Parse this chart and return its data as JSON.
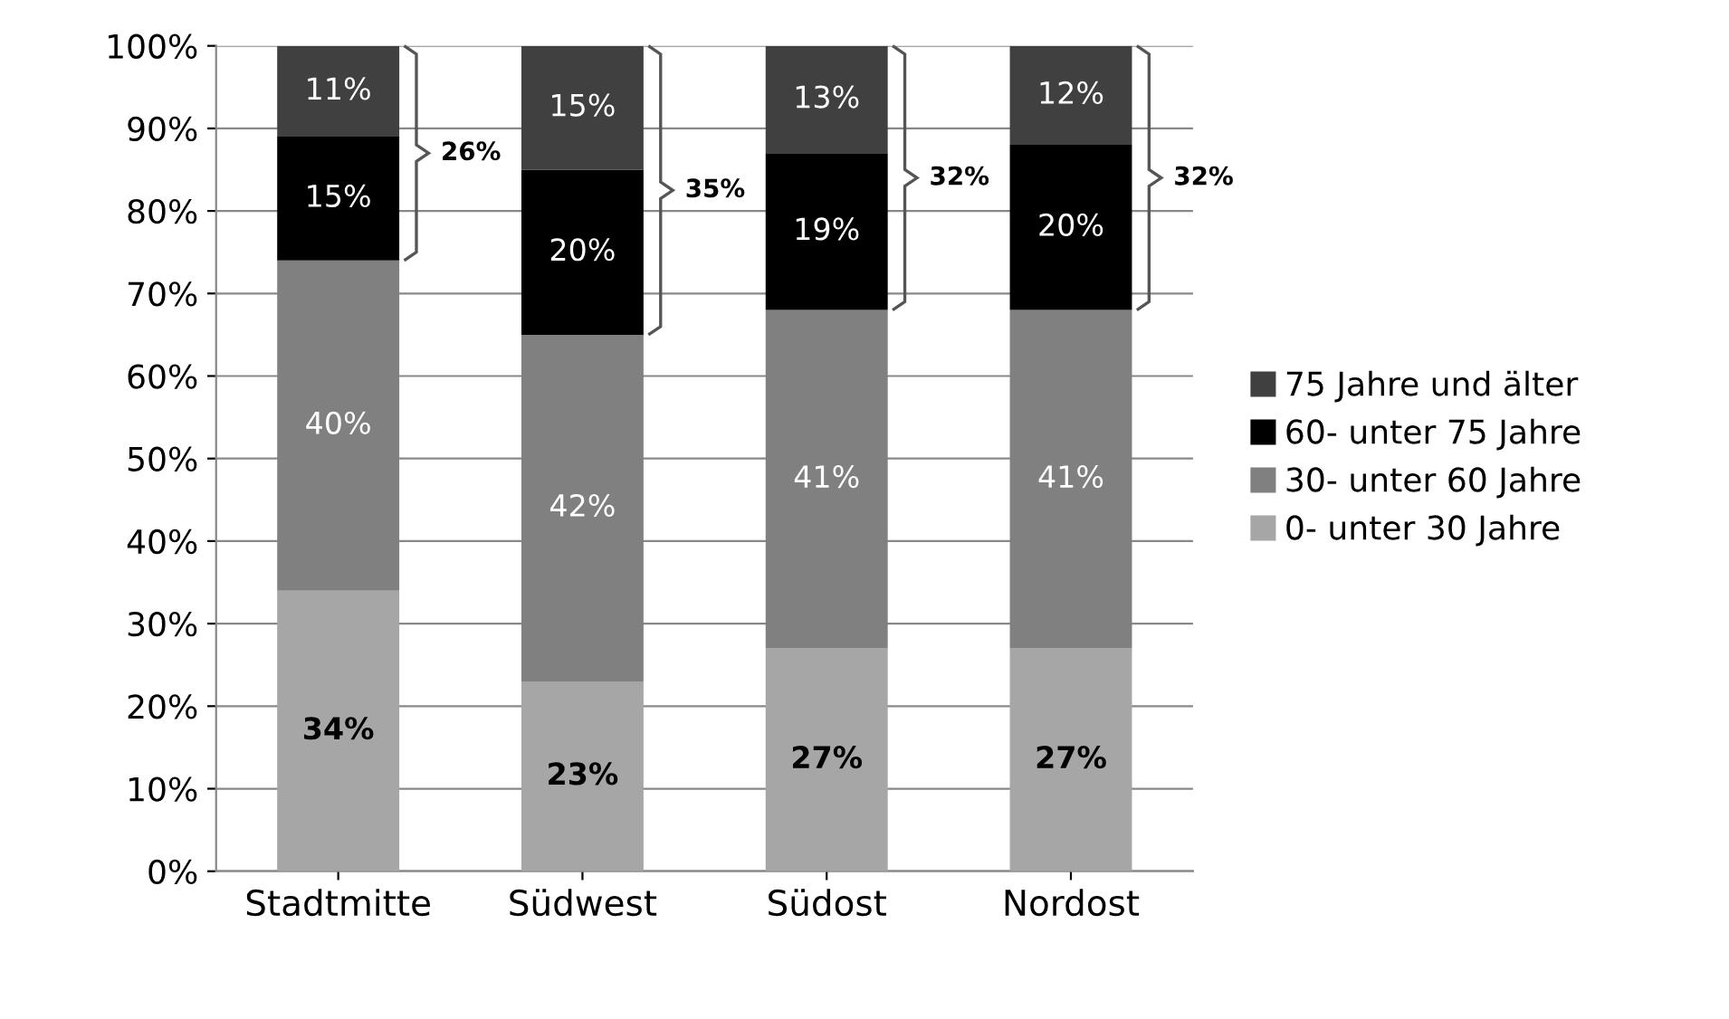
{
  "chart_data": {
    "type": "bar",
    "stacked": true,
    "categories": [
      "Stadtmitte",
      "Südwest",
      "Südost",
      "Nordost"
    ],
    "series": [
      {
        "name": "0- unter 30 Jahre",
        "color": "#a6a6a6",
        "values": [
          34,
          23,
          27,
          27
        ],
        "value_labels": [
          "34%",
          "23%",
          "27%",
          "27%"
        ]
      },
      {
        "name": "30- unter 60 Jahre",
        "color": "#808080",
        "values": [
          40,
          42,
          41,
          41
        ],
        "value_labels": [
          "40%",
          "42%",
          "41%",
          "41%"
        ]
      },
      {
        "name": "60- unter 75 Jahre",
        "color": "#000000",
        "values": [
          15,
          20,
          19,
          20
        ],
        "value_labels": [
          "15%",
          "20%",
          "19%",
          "20%"
        ]
      },
      {
        "name": "75 Jahre und älter",
        "color": "#404040",
        "values": [
          11,
          15,
          13,
          12
        ],
        "value_labels": [
          "11%",
          "15%",
          "13%",
          "12%"
        ]
      }
    ],
    "annotations": [
      "26%",
      "35%",
      "32%",
      "32%"
    ],
    "ylim": [
      0,
      100
    ],
    "yticks": [
      {
        "value": 0,
        "label": "0%"
      },
      {
        "value": 10,
        "label": "10%"
      },
      {
        "value": 20,
        "label": "20%"
      },
      {
        "value": 30,
        "label": "30%"
      },
      {
        "value": 40,
        "label": "40%"
      },
      {
        "value": 50,
        "label": "50%"
      },
      {
        "value": 60,
        "label": "60%"
      },
      {
        "value": 70,
        "label": "70%"
      },
      {
        "value": 80,
        "label": "80%"
      },
      {
        "value": 90,
        "label": "90%"
      },
      {
        "value": 100,
        "label": "100%"
      }
    ],
    "grid": "y",
    "legend": "right"
  }
}
